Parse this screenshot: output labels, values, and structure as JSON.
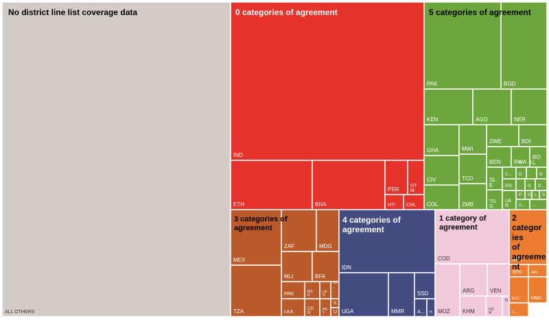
{
  "chart_data": {
    "type": "treemap",
    "title": "",
    "colors": {
      "none": "#d3cbc6",
      "zero": "#e5322b",
      "five": "#6da63d",
      "three": "#ba5a2b",
      "four": "#434b80",
      "one": "#f2c8dc",
      "two": "#ed7d31",
      "border": "#ffffff"
    },
    "groups": [
      {
        "id": "none",
        "name": "No district line list coverage data",
        "color_key": "none",
        "title_color": "#000000",
        "cells": [
          {
            "label": "ALL OTHERS"
          }
        ]
      },
      {
        "id": "zero",
        "name": "0 categories of agreement",
        "color_key": "zero",
        "title_color": "#ffffff",
        "cells": [
          {
            "label": "IND"
          },
          {
            "label": "ETH"
          },
          {
            "label": "BRA"
          },
          {
            "label": "PER"
          },
          {
            "label": "GTM"
          },
          {
            "label": "HTI"
          },
          {
            "label": "CHL"
          }
        ]
      },
      {
        "id": "five",
        "name": "5 categories of agreement",
        "color_key": "five",
        "title_color": "#000000",
        "cells": [
          {
            "label": "PAK"
          },
          {
            "label": "BGD"
          },
          {
            "label": "KEN"
          },
          {
            "label": "AGO"
          },
          {
            "label": "NER"
          },
          {
            "label": "GHA"
          },
          {
            "label": "MWI"
          },
          {
            "label": "ZWE"
          },
          {
            "label": "BDI"
          },
          {
            "label": "BEN"
          },
          {
            "label": "RWA"
          },
          {
            "label": "BOL"
          },
          {
            "label": "CIV"
          },
          {
            "label": "TCD"
          },
          {
            "label": "C..."
          },
          {
            "label": "N..."
          },
          {
            "label": "S..."
          },
          {
            "label": "G"
          },
          {
            "label": "SLE"
          },
          {
            "label": "ERI"
          },
          {
            "label": "O..."
          },
          {
            "label": "G"
          },
          {
            "label": "B..."
          },
          {
            "label": "TGO"
          },
          {
            "label": "P"
          },
          {
            "label": "G"
          },
          {
            "label": "L"
          },
          {
            "label": "S"
          },
          {
            "label": "COL"
          },
          {
            "label": "ZMB"
          },
          {
            "label": "LBR"
          },
          {
            "label": "C..."
          },
          {
            "label": "..."
          }
        ]
      },
      {
        "id": "three",
        "name": "3 categories of agreement",
        "color_key": "three",
        "title_color": "#000000",
        "cells": [
          {
            "label": "MEX"
          },
          {
            "label": "ZAF"
          },
          {
            "label": "MDG"
          },
          {
            "label": "MLI"
          },
          {
            "label": "BFA"
          },
          {
            "label": "TZA"
          },
          {
            "label": "PRK"
          },
          {
            "label": "ROU"
          },
          {
            "label": "LAO"
          },
          {
            "label": "M..."
          },
          {
            "label": "LKA"
          },
          {
            "label": "COG"
          },
          {
            "label": "PRY"
          },
          {
            "label": "N"
          },
          {
            "label": "U"
          }
        ]
      },
      {
        "id": "four",
        "name": "4 categories of agreement",
        "color_key": "four",
        "title_color": "#ffffff",
        "cells": [
          {
            "label": "IDN"
          },
          {
            "label": "UGA"
          },
          {
            "label": "MMR"
          },
          {
            "label": "SSD"
          },
          {
            "label": "A..."
          },
          {
            "label": "H"
          }
        ]
      },
      {
        "id": "one",
        "name": "1 category of agreement",
        "color_key": "one",
        "title_color": "#000000",
        "cells": [
          {
            "label": "COD"
          },
          {
            "label": "MOZ"
          },
          {
            "label": "ARG"
          },
          {
            "label": "VEN"
          },
          {
            "label": "KHM"
          },
          {
            "label": "DOM"
          },
          {
            "label": "N..."
          }
        ]
      },
      {
        "id": "two",
        "name": "2 categories of agreement",
        "color_key": "two",
        "title_color": "#000000",
        "cells": [
          {
            "label": "NPL"
          },
          {
            "label": "SEN"
          },
          {
            "label": "GIN"
          },
          {
            "label": "ECU"
          },
          {
            "label": "HND"
          },
          {
            "label": "C..."
          }
        ]
      }
    ]
  }
}
